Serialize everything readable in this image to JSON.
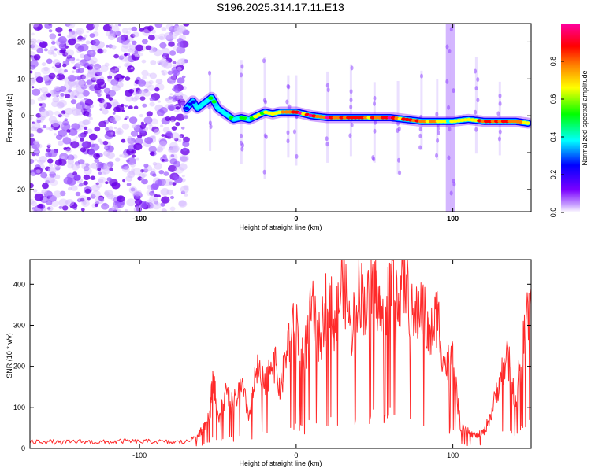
{
  "figure": {
    "title": "S196.2025.314.17.11.E13"
  },
  "chart_data": [
    {
      "type": "heatmap",
      "title": "S196.2025.314.17.11.E13",
      "xlabel": "Height of straight line (km)",
      "ylabel": "Frequency (Hz)",
      "xlim": [
        -170,
        150
      ],
      "ylim": [
        -26,
        25
      ],
      "xticks": [
        -100,
        0,
        100
      ],
      "yticks": [
        -20,
        -10,
        0,
        10,
        20
      ],
      "colorbar": {
        "label": "Normalized spectral amplitude",
        "range": [
          0,
          1
        ],
        "ticks": [
          0.0,
          0.2,
          0.4,
          0.6,
          0.8
        ],
        "tick_labels": [
          "0.0",
          "0.2",
          "0.4",
          "0.6",
          "0.8"
        ],
        "colormap": [
          "#7a00ff",
          "#0000ff",
          "#00ffff",
          "#00ff00",
          "#ffff00",
          "#ff8000",
          "#ff0000",
          "#ff00a0"
        ]
      },
      "noise_region_x": [
        -170,
        -70
      ],
      "ridge": {
        "x": [
          -70,
          -68,
          -66,
          -63,
          -60,
          -57,
          -54,
          -50,
          -45,
          -40,
          -35,
          -30,
          -25,
          -20,
          -15,
          -10,
          -5,
          0,
          5,
          10,
          20,
          30,
          40,
          50,
          60,
          70,
          80,
          90,
          97,
          100,
          110,
          120,
          130,
          140,
          148
        ],
        "y": [
          2,
          3,
          4,
          2,
          3,
          4,
          5,
          2,
          0.5,
          -1,
          -0.5,
          -1,
          0,
          1,
          0.5,
          1,
          1,
          1,
          0.5,
          0,
          -0.5,
          -0.5,
          -0.5,
          -0.5,
          -0.5,
          -1,
          -1.5,
          -1.5,
          -1.5,
          -1.5,
          -1,
          -1.5,
          -1.5,
          -1.5,
          -2
        ],
        "amplitude": [
          0.2,
          0.3,
          0.25,
          0.35,
          0.35,
          0.4,
          0.45,
          0.35,
          0.35,
          0.4,
          0.45,
          0.5,
          0.55,
          0.6,
          0.65,
          0.7,
          0.75,
          0.85,
          0.8,
          0.9,
          0.85,
          0.85,
          0.8,
          0.85,
          0.9,
          0.75,
          0.8,
          0.7,
          0.45,
          0.5,
          0.7,
          0.8,
          0.85,
          0.8,
          0.6
        ]
      },
      "vertical_streaks_x": [
        -55,
        -35,
        -20,
        -5,
        0,
        20,
        35,
        50,
        65,
        80,
        90,
        97,
        100,
        115,
        130
      ]
    },
    {
      "type": "line",
      "xlabel": "Height of straight line (km)",
      "ylabel": "SNR (10 * v/v)",
      "xlim": [
        -170,
        150
      ],
      "ylim": [
        0,
        460
      ],
      "xticks": [
        -100,
        0,
        100
      ],
      "yticks": [
        0,
        100,
        200,
        300,
        400
      ],
      "color": "#ff2a2a",
      "series": [
        {
          "x": [
            -170,
            -160,
            -150,
            -140,
            -130,
            -120,
            -110,
            -100,
            -90,
            -80,
            -70,
            -62,
            -58,
            -55,
            -53,
            -50,
            -45,
            -40,
            -35,
            -30,
            -25,
            -20,
            -15,
            -10,
            -5,
            0,
            5,
            10,
            15,
            20,
            25,
            30,
            35,
            40,
            45,
            50,
            55,
            60,
            65,
            70,
            75,
            80,
            85,
            90,
            95,
            100,
            105,
            110,
            115,
            120,
            125,
            130,
            135,
            140,
            145,
            150
          ],
          "y": [
            15,
            18,
            14,
            17,
            16,
            15,
            18,
            16,
            17,
            15,
            16,
            35,
            60,
            90,
            180,
            70,
            130,
            110,
            150,
            80,
            190,
            150,
            230,
            140,
            260,
            300,
            220,
            340,
            260,
            380,
            300,
            420,
            280,
            400,
            340,
            410,
            300,
            430,
            380,
            410,
            300,
            360,
            260,
            330,
            200,
            220,
            50,
            40,
            30,
            40,
            90,
            170,
            220,
            120,
            260,
            390
          ]
        }
      ]
    }
  ]
}
